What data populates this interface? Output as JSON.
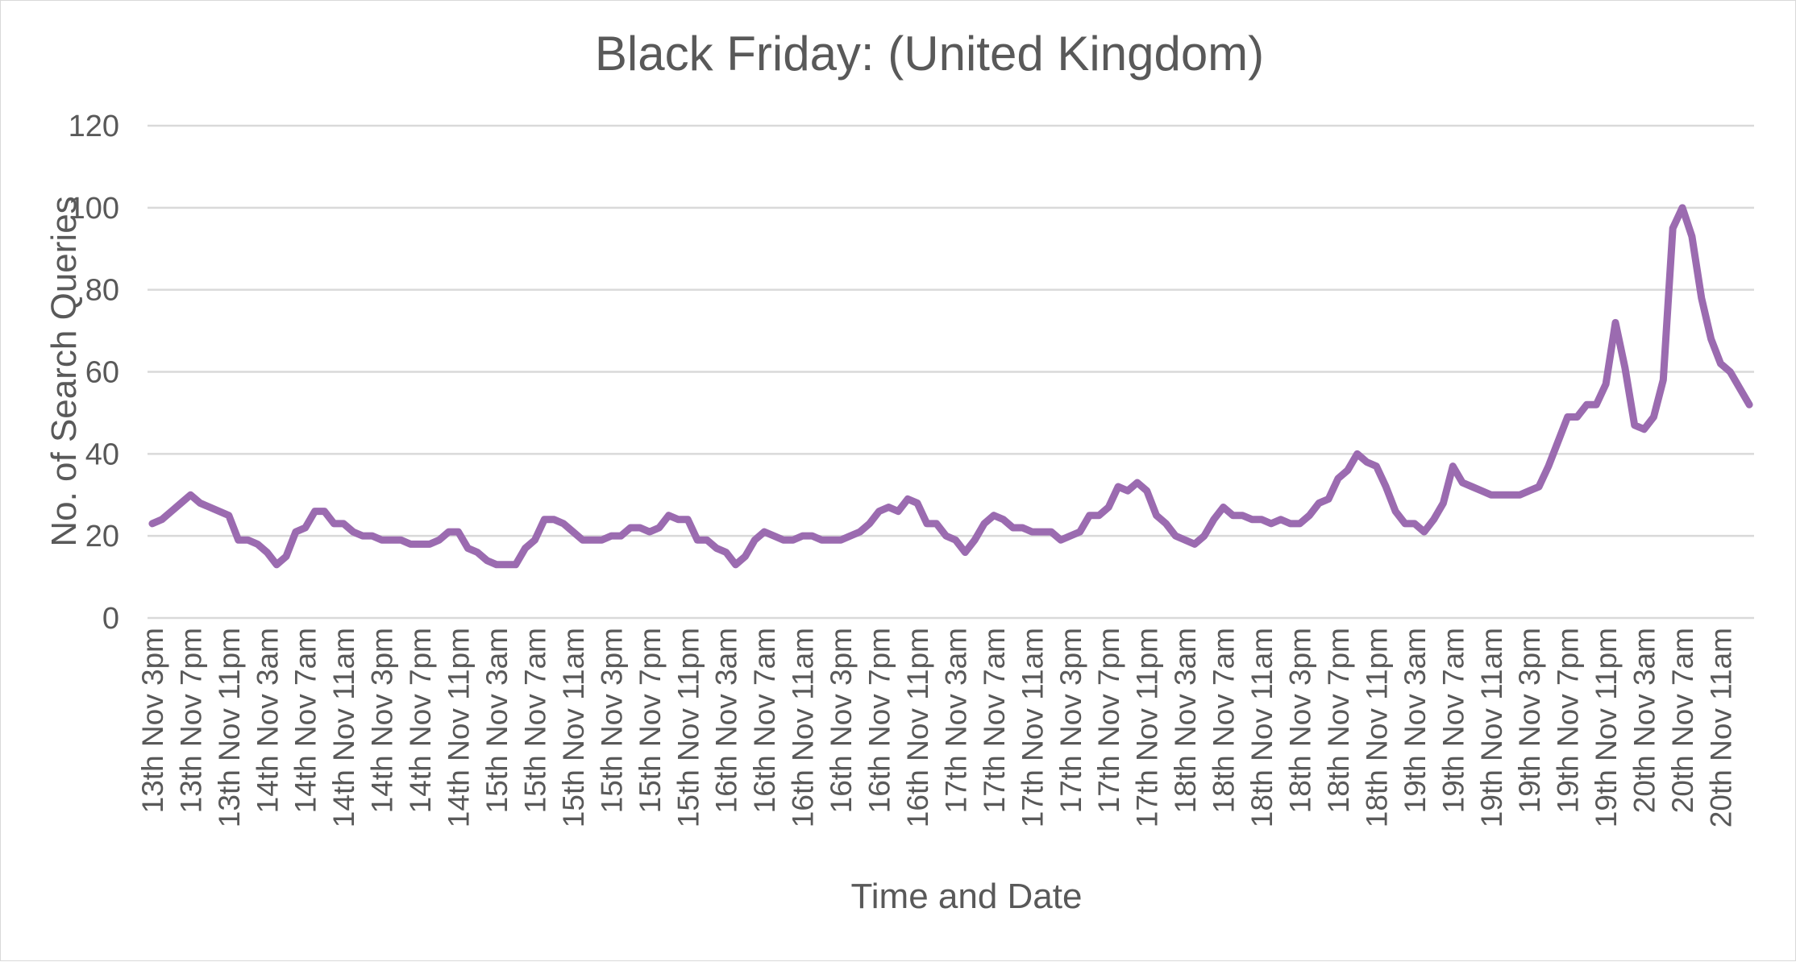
{
  "chart_data": {
    "type": "line",
    "title": "Black Friday: (United Kingdom)",
    "xlabel": "Time and Date",
    "ylabel": "No. of Search Queries",
    "ylim": [
      0,
      120
    ],
    "yticks": [
      0,
      20,
      40,
      60,
      80,
      100,
      120
    ],
    "grid": true,
    "line_color": "#9b6bb0",
    "x_tick_labels": [
      "13th Nov 3pm",
      "13th Nov 7pm",
      "13th Nov 11pm",
      "14th Nov 3am",
      "14th Nov 7am",
      "14th Nov 11am",
      "14th Nov 3pm",
      "14th Nov 7pm",
      "14th Nov 11pm",
      "15th Nov 3am",
      "15th Nov 7am",
      "15th Nov 11am",
      "15th Nov 3pm",
      "15th Nov 7pm",
      "15th Nov 11pm",
      "16th Nov 3am",
      "16th Nov 7am",
      "16th Nov 11am",
      "16th Nov 3pm",
      "16th Nov 7pm",
      "16th Nov 11pm",
      "17th Nov 3am",
      "17th Nov 7am",
      "17th Nov 11am",
      "17th Nov 3pm",
      "17th Nov 7pm",
      "17th Nov 11pm",
      "18th Nov 3am",
      "18th Nov 7am",
      "18th Nov 11am",
      "18th Nov 3pm",
      "18th Nov 7pm",
      "18th Nov 11pm",
      "19th Nov 3am",
      "19th Nov 7am",
      "19th Nov 11am",
      "19th Nov 3pm",
      "19th Nov 7pm",
      "19th Nov 11pm",
      "20th Nov 3am",
      "20th Nov 7am",
      "20th Nov 11am"
    ],
    "series": [
      {
        "values": [
          23,
          24,
          26,
          28,
          30,
          28,
          27,
          26,
          25,
          19,
          19,
          18,
          16,
          13,
          15,
          21,
          22,
          26,
          26,
          23,
          23,
          21,
          20,
          20,
          19,
          19,
          19,
          18,
          18,
          18,
          19,
          21,
          21,
          17,
          16,
          14,
          13,
          13,
          13,
          17,
          19,
          24,
          24,
          23,
          21,
          19,
          19,
          19,
          20,
          20,
          22,
          22,
          21,
          22,
          25,
          24,
          24,
          19,
          19,
          17,
          16,
          13,
          15,
          19,
          21,
          20,
          19,
          19,
          20,
          20,
          19,
          19,
          19,
          20,
          21,
          23,
          26,
          27,
          26,
          29,
          28,
          23,
          23,
          20,
          19,
          16,
          19,
          23,
          25,
          24,
          22,
          22,
          21,
          21,
          21,
          19,
          20,
          21,
          25,
          25,
          27,
          32,
          31,
          33,
          31,
          25,
          23,
          20,
          19,
          18,
          20,
          24,
          27,
          25,
          25,
          24,
          24,
          23,
          24,
          23,
          23,
          25,
          28,
          29,
          34,
          36,
          40,
          38,
          37,
          32,
          26,
          23,
          23,
          21,
          24,
          28,
          37,
          33,
          32,
          31,
          30,
          30,
          30,
          30,
          31,
          32,
          37,
          43,
          49,
          49,
          52,
          52,
          57,
          72,
          61,
          47,
          46,
          49,
          58,
          95,
          100,
          93,
          78,
          68,
          62,
          60,
          56,
          52
        ]
      }
    ]
  }
}
